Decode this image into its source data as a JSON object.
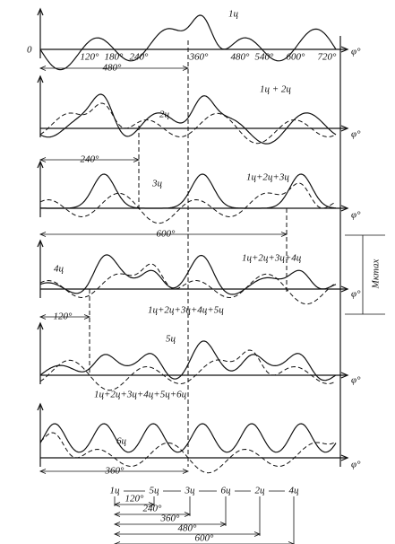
{
  "panel1": {
    "label": "1ц",
    "origin": "0",
    "angles": [
      "120°",
      "180°",
      "240°",
      "360°",
      "480°",
      "540°",
      "600°",
      "720°"
    ],
    "axis": "φ°",
    "span": "480°"
  },
  "panel2": {
    "single": "2ц",
    "sum": "1ц + 2ц",
    "axis": "φ°",
    "span": "240°"
  },
  "panel3": {
    "single": "3ц",
    "sum": "1ц+2ц+3ц",
    "axis": "φ°",
    "span": "600°"
  },
  "panel4": {
    "single": "4ц",
    "sum": "1ц+2ц+3ц+4ц",
    "axis": "φ°",
    "torque": "Mкmax",
    "span": "120°"
  },
  "panel5": {
    "single": "5ц",
    "sum": "1ц+2ц+3ц+4ц+5ц",
    "axis": "φ°"
  },
  "panel6": {
    "single": "6ц",
    "sum": "1ц+2ц+3ц+4ц+5ц+6ц",
    "axis": "φ°",
    "span": "360°"
  },
  "firing_order": {
    "cylinders": [
      "1ц",
      "5ц",
      "3ц",
      "6ц",
      "2ц",
      "4ц"
    ],
    "intervals": [
      "120°",
      "240°",
      "360°",
      "480°",
      "600°"
    ]
  }
}
